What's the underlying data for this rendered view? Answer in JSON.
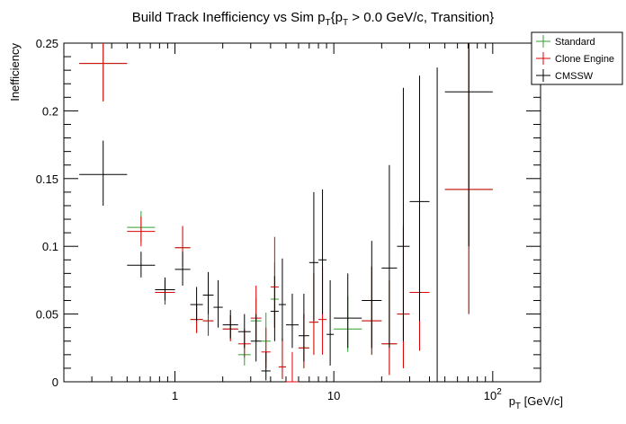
{
  "chart_data": {
    "type": "scatter",
    "title_main": "Build Track Inefficiency vs Sim p",
    "title_sub1": "T",
    "title_mid": "{p",
    "title_sub2": "T",
    "title_end": " > 0.0 GeV/c, Transition}",
    "ylabel": "Inefficiency",
    "xlabel_main": "p",
    "xlabel_sub": "T",
    "xlabel_unit": " [GeV/c]",
    "x_scale": "log",
    "xlim": [
      0.2,
      200
    ],
    "ylim": [
      0,
      0.25
    ],
    "x_ticks": [
      {
        "value": 1,
        "label": "1"
      },
      {
        "value": 10,
        "label": "10"
      },
      {
        "value": 100,
        "label": "10",
        "sup": "2"
      }
    ],
    "y_ticks": [
      {
        "value": 0,
        "label": "0"
      },
      {
        "value": 0.05,
        "label": "0.05"
      },
      {
        "value": 0.1,
        "label": "0.1"
      },
      {
        "value": 0.15,
        "label": "0.15"
      },
      {
        "value": 0.2,
        "label": "0.2"
      },
      {
        "value": 0.25,
        "label": "0.25"
      }
    ],
    "legend_position": "top-right",
    "grid": false,
    "series": [
      {
        "name": "Standard",
        "color": "#2ca02c",
        "points": [
          {
            "xlo": 0.25,
            "xhi": 0.5,
            "y": 0.235,
            "ylo": 0.207,
            "yhi": 0.25
          },
          {
            "xlo": 0.5,
            "xhi": 0.75,
            "y": 0.114,
            "ylo": 0.103,
            "yhi": 0.126
          },
          {
            "xlo": 0.75,
            "xhi": 1.0,
            "y": 0.066,
            "ylo": 0.057,
            "yhi": 0.075
          },
          {
            "xlo": 1.0,
            "xhi": 1.25,
            "y": 0.099,
            "ylo": 0.085,
            "yhi": 0.115
          },
          {
            "xlo": 1.25,
            "xhi": 1.5,
            "y": 0.046,
            "ylo": 0.036,
            "yhi": 0.057
          },
          {
            "xlo": 1.5,
            "xhi": 1.75,
            "y": 0.045,
            "ylo": 0.034,
            "yhi": 0.057
          },
          {
            "xlo": 2.0,
            "xhi": 2.5,
            "y": 0.039,
            "ylo": 0.03,
            "yhi": 0.049
          },
          {
            "xlo": 2.5,
            "xhi": 3.0,
            "y": 0.02,
            "ylo": 0.012,
            "yhi": 0.029
          },
          {
            "xlo": 3.0,
            "xhi": 3.5,
            "y": 0.045,
            "ylo": 0.03,
            "yhi": 0.062
          },
          {
            "xlo": 3.5,
            "xhi": 4.0,
            "y": 0.03,
            "ylo": 0.015,
            "yhi": 0.051
          },
          {
            "xlo": 4.0,
            "xhi": 4.5,
            "y": 0.061,
            "ylo": 0.04,
            "yhi": 0.088
          },
          {
            "xlo": 4.5,
            "xhi": 5.0,
            "y": 0.011,
            "ylo": 0.002,
            "yhi": 0.032
          },
          {
            "xlo": 6.0,
            "xhi": 7.0,
            "y": 0.025,
            "ylo": 0.01,
            "yhi": 0.05
          },
          {
            "xlo": 7.0,
            "xhi": 8.0,
            "y": 0.044,
            "ylo": 0.02,
            "yhi": 0.08
          },
          {
            "xlo": 10,
            "xhi": 15,
            "y": 0.039,
            "ylo": 0.022,
            "yhi": 0.063
          },
          {
            "xlo": 15,
            "xhi": 20,
            "y": 0.045,
            "ylo": 0.02,
            "yhi": 0.085
          },
          {
            "xlo": 20,
            "xhi": 25,
            "y": 0.028,
            "ylo": 0.005,
            "yhi": 0.075
          },
          {
            "xlo": 25,
            "xhi": 30,
            "y": 0.05,
            "ylo": 0.01,
            "yhi": 0.115
          },
          {
            "xlo": 30,
            "xhi": 40,
            "y": 0.066,
            "ylo": 0.023,
            "yhi": 0.135
          },
          {
            "xlo": 50,
            "xhi": 100,
            "y": 0.142,
            "ylo": 0.05,
            "yhi": 0.25
          }
        ]
      },
      {
        "name": "Clone Engine",
        "color": "#e0000a",
        "points": [
          {
            "xlo": 0.25,
            "xhi": 0.5,
            "y": 0.235,
            "ylo": 0.207,
            "yhi": 0.25
          },
          {
            "xlo": 0.5,
            "xhi": 0.75,
            "y": 0.111,
            "ylo": 0.1,
            "yhi": 0.122
          },
          {
            "xlo": 0.75,
            "xhi": 1.0,
            "y": 0.066,
            "ylo": 0.057,
            "yhi": 0.075
          },
          {
            "xlo": 1.0,
            "xhi": 1.25,
            "y": 0.099,
            "ylo": 0.085,
            "yhi": 0.115
          },
          {
            "xlo": 1.25,
            "xhi": 1.5,
            "y": 0.046,
            "ylo": 0.036,
            "yhi": 0.057
          },
          {
            "xlo": 1.5,
            "xhi": 1.75,
            "y": 0.045,
            "ylo": 0.034,
            "yhi": 0.057
          },
          {
            "xlo": 2.0,
            "xhi": 2.5,
            "y": 0.039,
            "ylo": 0.03,
            "yhi": 0.049
          },
          {
            "xlo": 2.5,
            "xhi": 3.0,
            "y": 0.028,
            "ylo": 0.018,
            "yhi": 0.039
          },
          {
            "xlo": 3.0,
            "xhi": 3.5,
            "y": 0.047,
            "ylo": 0.03,
            "yhi": 0.071
          },
          {
            "xlo": 3.5,
            "xhi": 4.0,
            "y": 0.022,
            "ylo": 0.01,
            "yhi": 0.04
          },
          {
            "xlo": 4.0,
            "xhi": 4.5,
            "y": 0.07,
            "ylo": 0.04,
            "yhi": 0.107
          },
          {
            "xlo": 4.5,
            "xhi": 5.0,
            "y": 0.011,
            "ylo": 0.002,
            "yhi": 0.032
          },
          {
            "xlo": 5.0,
            "xhi": 6.0,
            "y": 0.0,
            "ylo": 0.0,
            "yhi": 0.022
          },
          {
            "xlo": 6.0,
            "xhi": 7.0,
            "y": 0.025,
            "ylo": 0.01,
            "yhi": 0.05
          },
          {
            "xlo": 7.0,
            "xhi": 8.0,
            "y": 0.044,
            "ylo": 0.02,
            "yhi": 0.08
          },
          {
            "xlo": 8.0,
            "xhi": 9.0,
            "y": 0.046,
            "ylo": 0.02,
            "yhi": 0.085
          },
          {
            "xlo": 15,
            "xhi": 20,
            "y": 0.045,
            "ylo": 0.02,
            "yhi": 0.085
          },
          {
            "xlo": 20,
            "xhi": 25,
            "y": 0.028,
            "ylo": 0.005,
            "yhi": 0.075
          },
          {
            "xlo": 25,
            "xhi": 30,
            "y": 0.05,
            "ylo": 0.01,
            "yhi": 0.115
          },
          {
            "xlo": 30,
            "xhi": 40,
            "y": 0.066,
            "ylo": 0.023,
            "yhi": 0.135
          },
          {
            "xlo": 50,
            "xhi": 100,
            "y": 0.142,
            "ylo": 0.05,
            "yhi": 0.25
          }
        ]
      },
      {
        "name": "CMSSW",
        "color": "#000000",
        "points": [
          {
            "xlo": 0.25,
            "xhi": 0.5,
            "y": 0.153,
            "ylo": 0.13,
            "yhi": 0.178
          },
          {
            "xlo": 0.5,
            "xhi": 0.75,
            "y": 0.086,
            "ylo": 0.077,
            "yhi": 0.096
          },
          {
            "xlo": 0.75,
            "xhi": 1.0,
            "y": 0.068,
            "ylo": 0.06,
            "yhi": 0.077
          },
          {
            "xlo": 1.0,
            "xhi": 1.25,
            "y": 0.083,
            "ylo": 0.071,
            "yhi": 0.096
          },
          {
            "xlo": 1.25,
            "xhi": 1.5,
            "y": 0.057,
            "ylo": 0.045,
            "yhi": 0.07
          },
          {
            "xlo": 1.5,
            "xhi": 1.75,
            "y": 0.064,
            "ylo": 0.05,
            "yhi": 0.081
          },
          {
            "xlo": 1.75,
            "xhi": 2.0,
            "y": 0.055,
            "ylo": 0.04,
            "yhi": 0.075
          },
          {
            "xlo": 2.0,
            "xhi": 2.5,
            "y": 0.042,
            "ylo": 0.032,
            "yhi": 0.053
          },
          {
            "xlo": 2.5,
            "xhi": 3.0,
            "y": 0.037,
            "ylo": 0.025,
            "yhi": 0.05
          },
          {
            "xlo": 3.0,
            "xhi": 3.5,
            "y": 0.03,
            "ylo": 0.015,
            "yhi": 0.05
          },
          {
            "xlo": 3.5,
            "xhi": 4.0,
            "y": 0.008,
            "ylo": 0.001,
            "yhi": 0.022
          },
          {
            "xlo": 4.0,
            "xhi": 4.5,
            "y": 0.052,
            "ylo": 0.03,
            "yhi": 0.078
          },
          {
            "xlo": 4.5,
            "xhi": 5.0,
            "y": 0.057,
            "ylo": 0.03,
            "yhi": 0.091
          },
          {
            "xlo": 5.0,
            "xhi": 6.0,
            "y": 0.042,
            "ylo": 0.025,
            "yhi": 0.065
          },
          {
            "xlo": 6.0,
            "xhi": 7.0,
            "y": 0.034,
            "ylo": 0.015,
            "yhi": 0.065
          },
          {
            "xlo": 7.0,
            "xhi": 8.0,
            "y": 0.088,
            "ylo": 0.045,
            "yhi": 0.14
          },
          {
            "xlo": 8.0,
            "xhi": 9.0,
            "y": 0.09,
            "ylo": 0.05,
            "yhi": 0.142
          },
          {
            "xlo": 9.0,
            "xhi": 10.0,
            "y": 0.035,
            "ylo": 0.012,
            "yhi": 0.075
          },
          {
            "xlo": 10,
            "xhi": 15,
            "y": 0.047,
            "ylo": 0.025,
            "yhi": 0.08
          },
          {
            "xlo": 15,
            "xhi": 20,
            "y": 0.06,
            "ylo": 0.025,
            "yhi": 0.104
          },
          {
            "xlo": 20,
            "xhi": 25,
            "y": 0.084,
            "ylo": 0.025,
            "yhi": 0.16
          },
          {
            "xlo": 25,
            "xhi": 30,
            "y": 0.1,
            "ylo": 0.03,
            "yhi": 0.217
          },
          {
            "xlo": 30,
            "xhi": 40,
            "y": 0.133,
            "ylo": 0.045,
            "yhi": 0.226
          },
          {
            "xlo": 40,
            "xhi": 50,
            "y": 0.0,
            "ylo": 0.0,
            "yhi": 0.232
          },
          {
            "xlo": 50,
            "xhi": 100,
            "y": 0.214,
            "ylo": 0.1,
            "yhi": 0.25
          }
        ]
      }
    ]
  }
}
